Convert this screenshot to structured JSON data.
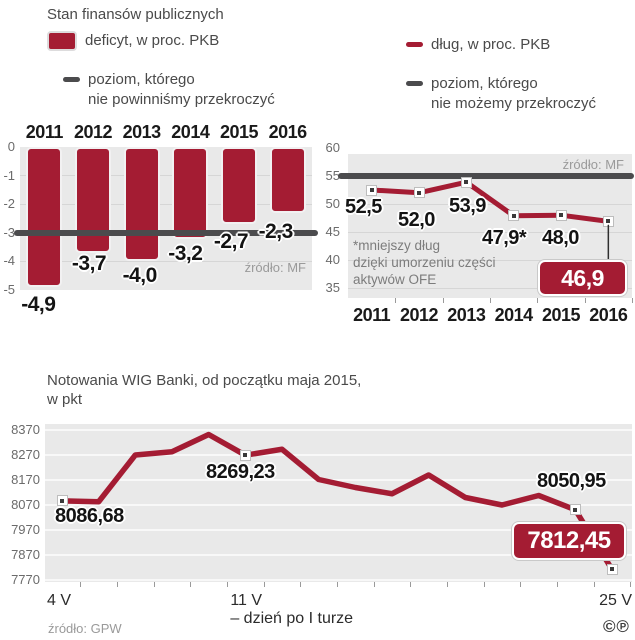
{
  "header": {
    "title": "Stan finansów publicznych",
    "legend_deficit": "deficyt, w proc. PKB",
    "legend_deficit_threshold": [
      "poziom, którego",
      "nie powinniśmy przekroczyć"
    ],
    "legend_debt": "dług, w proc. PKB",
    "legend_debt_threshold": [
      "poziom, którego",
      "nie możemy przekroczyć"
    ]
  },
  "colors": {
    "series_red": "#a41c33",
    "threshold_gray": "#4b4b4d",
    "band_bg": "#e9e9e9"
  },
  "chart_data": [
    {
      "type": "bar",
      "id": "deficit",
      "title": "Stan finansów publicznych",
      "legend": [
        "deficyt, w proc. PKB",
        "poziom, którego nie powinniśmy przekroczyć"
      ],
      "categories": [
        "2011",
        "2012",
        "2013",
        "2014",
        "2015",
        "2016"
      ],
      "values": [
        -4.9,
        -3.7,
        -4.0,
        -3.2,
        -2.7,
        -2.3
      ],
      "value_labels": [
        "-4,9",
        "-3,7",
        "-4,0",
        "-3,2",
        "-2,7",
        "-2,3"
      ],
      "threshold": -3,
      "ylim": [
        -5,
        0
      ],
      "ytick_labels": [
        "0",
        "-1",
        "-2",
        "-3",
        "-4",
        "-5"
      ],
      "grid": true,
      "legend_position": "top",
      "source": "źródło: MF"
    },
    {
      "type": "line",
      "id": "debt",
      "legend": [
        "dług, w proc. PKB",
        "poziom, którego nie możemy przekroczyć"
      ],
      "categories": [
        "2011",
        "2012",
        "2013",
        "2014",
        "2015",
        "2016"
      ],
      "values": [
        52.5,
        52.0,
        53.9,
        47.9,
        48.0,
        46.9
      ],
      "value_labels": [
        "52,5",
        "52,0",
        "53,9",
        "47,9*",
        "48,0",
        null
      ],
      "callout_value_label": "46,9",
      "threshold": 55,
      "ylim": [
        35,
        60
      ],
      "ytick_labels": [
        "60",
        "55",
        "50",
        "45",
        "40",
        "35"
      ],
      "grid": true,
      "footnote_lines": [
        "*mniejszy dług",
        "dzięki umorzeniu części",
        "aktywów OFE"
      ],
      "source": "źródło: MF"
    },
    {
      "type": "line",
      "id": "wig-banki",
      "title_lines": [
        "Notowania WIG Banki, od początku maja 2015,",
        "w pkt"
      ],
      "values": [
        8086.68,
        8083,
        8270,
        8283,
        8352,
        8269.23,
        8293,
        8172,
        8140,
        8115,
        8190,
        8100,
        8070,
        8108,
        8050.95,
        7812.45
      ],
      "marker_indices": [
        0,
        5,
        14,
        15
      ],
      "value_labels": {
        "0": "8086,68",
        "5": "8269,23",
        "14": "8050,95"
      },
      "callout_value_label": "7812,45",
      "ylim": [
        7770,
        8370
      ],
      "ytick_labels": [
        "8370",
        "8270",
        "8170",
        "8070",
        "7970",
        "7870",
        "7770"
      ],
      "xtick_labels": [
        {
          "index": 0,
          "label": "4 V",
          "sublabel": null
        },
        {
          "index": 5,
          "label": "11 V",
          "sublabel": "– dzień po I turze"
        },
        {
          "index": 15,
          "label": "25 V",
          "sublabel": null
        }
      ],
      "grid": true,
      "source": "źródło: GPW"
    }
  ],
  "footer": {
    "copyright_marks": "©℗"
  }
}
